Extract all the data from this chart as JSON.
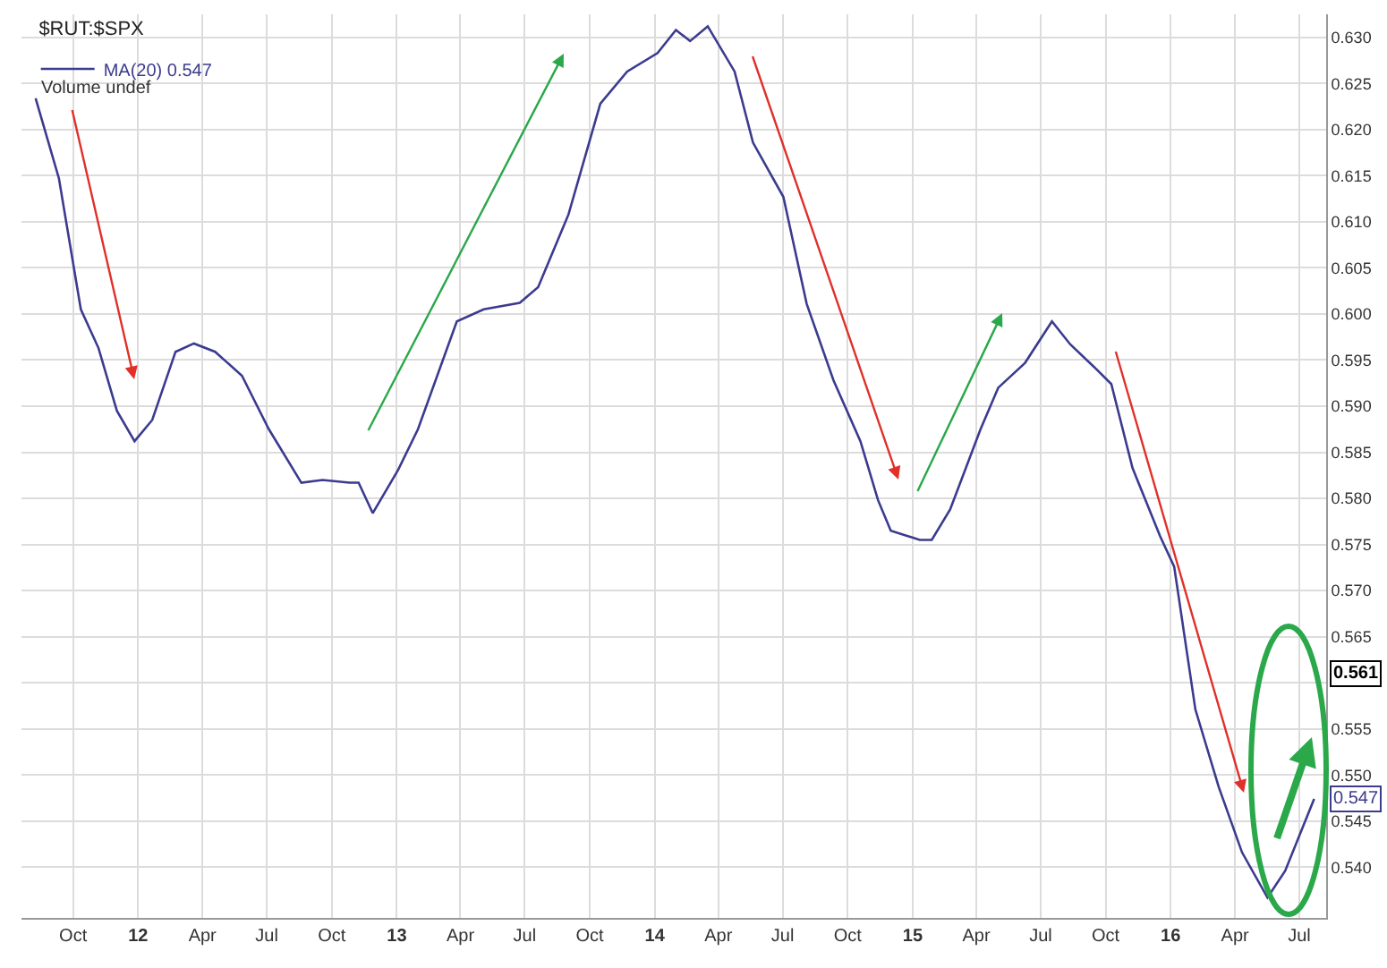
{
  "chart_data": {
    "type": "line",
    "title": "$RUT:$SPX",
    "annotations": [
      "Volume undef",
      "0.561"
    ],
    "x": [
      "2011-08-09",
      "2011-09-11",
      "2011-10-12",
      "2011-11-06",
      "2011-12-02",
      "2011-12-27",
      "2012-01-21",
      "2012-02-23",
      "2012-03-20",
      "2012-04-19",
      "2012-05-27",
      "2012-07-04",
      "2012-08-19",
      "2012-09-18",
      "2012-10-26",
      "2012-11-08",
      "2012-11-28",
      "2013-01-03",
      "2013-01-31",
      "2013-03-27",
      "2013-05-04",
      "2013-06-24",
      "2013-07-20",
      "2013-09-01",
      "2013-10-16",
      "2013-11-23",
      "2014-01-05",
      "2014-01-31",
      "2014-02-20",
      "2014-03-17",
      "2014-04-24",
      "2014-05-20",
      "2014-07-02",
      "2014-08-04",
      "2014-09-11",
      "2014-10-19",
      "2014-11-13",
      "2014-12-01",
      "2015-01-11",
      "2015-01-28",
      "2015-02-23",
      "2015-04-07",
      "2015-05-02",
      "2015-06-09",
      "2015-07-17",
      "2015-08-12",
      "2015-09-14",
      "2015-10-09",
      "2015-11-08",
      "2015-12-17",
      "2016-01-06",
      "2016-02-05",
      "2016-03-09",
      "2016-04-11",
      "2016-05-17",
      "2016-06-11",
      "2016-07-22"
    ],
    "series": [
      {
        "name": "MA(20) 0.547",
        "color": "#3b3b8f",
        "values": [
          0.6234,
          0.6147,
          0.6005,
          0.5963,
          0.5895,
          0.5862,
          0.5885,
          0.5959,
          0.5968,
          0.5959,
          0.5933,
          0.5875,
          0.5817,
          0.582,
          0.5817,
          0.5817,
          0.5784,
          0.5831,
          0.5875,
          0.5992,
          0.6005,
          0.6012,
          0.6029,
          0.6108,
          0.6228,
          0.6263,
          0.6283,
          0.6308,
          0.6296,
          0.6312,
          0.6263,
          0.6186,
          0.6127,
          0.6011,
          0.5928,
          0.5862,
          0.5798,
          0.5765,
          0.5755,
          0.5755,
          0.5788,
          0.5875,
          0.592,
          0.5947,
          0.5992,
          0.5967,
          0.5943,
          0.5924,
          0.5833,
          0.5759,
          0.5726,
          0.5571,
          0.5487,
          0.5416,
          0.5367,
          0.5396,
          0.5474
        ],
        "value_labels": [
          null,
          null,
          null,
          null,
          null,
          null,
          null,
          null,
          null,
          null,
          null,
          null,
          null,
          null,
          null,
          null,
          null,
          null,
          null,
          null,
          null,
          null,
          null,
          null,
          null,
          null,
          null,
          null,
          null,
          null,
          null,
          null,
          null,
          null,
          null,
          null,
          null,
          null,
          null,
          null,
          null,
          null,
          null,
          null,
          null,
          null,
          null,
          null,
          null,
          null,
          null,
          null,
          null,
          null,
          null,
          null,
          "0.547"
        ]
      }
    ],
    "xlim": [
      "2011-07-20",
      "2016-08-08"
    ],
    "xticks": [
      {
        "value": "2011-10-01",
        "label": "Oct"
      },
      {
        "value": "2012-01-01",
        "label": "12"
      },
      {
        "value": "2012-04-01",
        "label": "Apr"
      },
      {
        "value": "2012-07-01",
        "label": "Jul"
      },
      {
        "value": "2012-10-01",
        "label": "Oct"
      },
      {
        "value": "2013-01-01",
        "label": "13"
      },
      {
        "value": "2013-04-01",
        "label": "Apr"
      },
      {
        "value": "2013-07-01",
        "label": "Jul"
      },
      {
        "value": "2013-10-01",
        "label": "Oct"
      },
      {
        "value": "2014-01-01",
        "label": "14"
      },
      {
        "value": "2014-04-01",
        "label": "Apr"
      },
      {
        "value": "2014-07-01",
        "label": "Jul"
      },
      {
        "value": "2014-10-01",
        "label": "Oct"
      },
      {
        "value": "2015-01-01",
        "label": "15"
      },
      {
        "value": "2015-04-01",
        "label": "Apr"
      },
      {
        "value": "2015-07-01",
        "label": "Jul"
      },
      {
        "value": "2015-10-01",
        "label": "Oct"
      },
      {
        "value": "2016-01-01",
        "label": "16"
      },
      {
        "value": "2016-04-01",
        "label": "Apr"
      },
      {
        "value": "2016-07-01",
        "label": "Jul"
      }
    ],
    "ylim": [
      0.5345,
      0.6325
    ],
    "yticks": [
      {
        "value": 0.54,
        "label": "0.540"
      },
      {
        "value": 0.545,
        "label": "0.545"
      },
      {
        "value": 0.55,
        "label": "0.550"
      },
      {
        "value": 0.555,
        "label": "0.555"
      },
      {
        "value": 0.56,
        "label": null
      },
      {
        "value": 0.565,
        "label": "0.565"
      },
      {
        "value": 0.57,
        "label": "0.570"
      },
      {
        "value": 0.575,
        "label": "0.575"
      },
      {
        "value": 0.58,
        "label": "0.580"
      },
      {
        "value": 0.585,
        "label": "0.585"
      },
      {
        "value": 0.59,
        "label": "0.590"
      },
      {
        "value": 0.595,
        "label": "0.595"
      },
      {
        "value": 0.6,
        "label": "0.600"
      },
      {
        "value": 0.605,
        "label": "0.605"
      },
      {
        "value": 0.61,
        "label": "0.610"
      },
      {
        "value": 0.615,
        "label": "0.615"
      },
      {
        "value": 0.62,
        "label": "0.620"
      },
      {
        "value": 0.625,
        "label": "0.625"
      },
      {
        "value": 0.63,
        "label": "0.630"
      }
    ],
    "grid": true,
    "legend": "top left",
    "marker": "none",
    "line_style": "solid"
  }
}
